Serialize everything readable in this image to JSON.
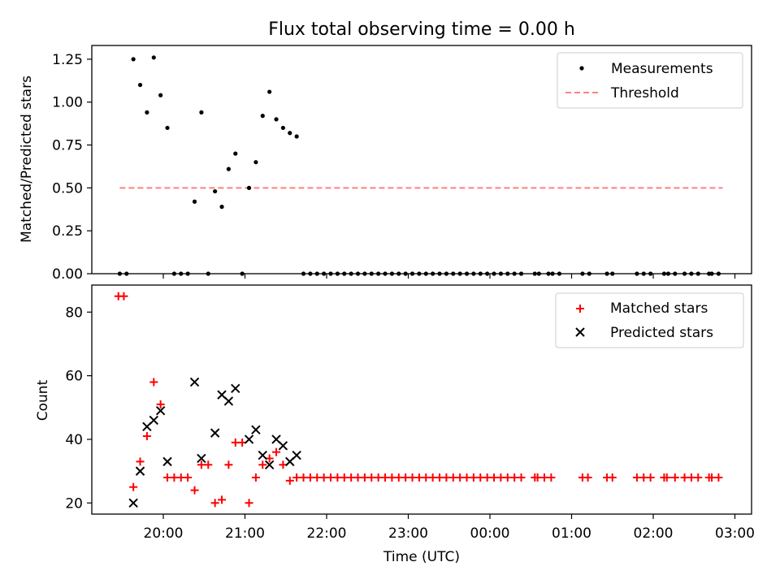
{
  "chart_data": [
    {
      "type": "scatter",
      "title": "Flux total observing time = 0.00 h",
      "ylabel": "Matched/Predicted stars",
      "xlabel": "",
      "ylim": [
        0,
        1.33
      ],
      "y_ticks": [
        0.0,
        0.25,
        0.5,
        0.75,
        1.0,
        1.25
      ],
      "y_tick_labels": [
        "0.00",
        "0.25",
        "0.50",
        "0.75",
        "1.00",
        "1.25"
      ],
      "legend_position": "top-right",
      "series": [
        {
          "name": "Measurements",
          "marker": "dot",
          "color": "#000000",
          "points": [
            [
              "19:28",
              0.0
            ],
            [
              "19:33",
              0.0
            ],
            [
              "19:38",
              1.25
            ],
            [
              "19:43",
              1.1
            ],
            [
              "19:48",
              0.94
            ],
            [
              "19:53",
              1.26
            ],
            [
              "19:58",
              1.04
            ],
            [
              "20:03",
              0.85
            ],
            [
              "20:08",
              0.0
            ],
            [
              "20:13",
              0.0
            ],
            [
              "20:18",
              0.0
            ],
            [
              "20:23",
              0.42
            ],
            [
              "20:28",
              0.94
            ],
            [
              "20:33",
              0.0
            ],
            [
              "20:38",
              0.48
            ],
            [
              "20:43",
              0.39
            ],
            [
              "20:48",
              0.61
            ],
            [
              "20:53",
              0.7
            ],
            [
              "20:58",
              0.0
            ],
            [
              "21:03",
              0.5
            ],
            [
              "21:08",
              0.65
            ],
            [
              "21:13",
              0.92
            ],
            [
              "21:18",
              1.06
            ],
            [
              "21:23",
              0.9
            ],
            [
              "21:28",
              0.85
            ],
            [
              "21:33",
              0.82
            ],
            [
              "21:38",
              0.8
            ],
            [
              "21:43",
              0.0
            ],
            [
              "21:48",
              0.0
            ],
            [
              "21:53",
              0.0
            ],
            [
              "21:58",
              0.0
            ],
            [
              "22:03",
              0.0
            ],
            [
              "22:08",
              0.0
            ],
            [
              "22:13",
              0.0
            ],
            [
              "22:18",
              0.0
            ],
            [
              "22:23",
              0.0
            ],
            [
              "22:28",
              0.0
            ],
            [
              "22:33",
              0.0
            ],
            [
              "22:38",
              0.0
            ],
            [
              "22:43",
              0.0
            ],
            [
              "22:48",
              0.0
            ],
            [
              "22:53",
              0.0
            ],
            [
              "22:58",
              0.0
            ],
            [
              "23:03",
              0.0
            ],
            [
              "23:08",
              0.0
            ],
            [
              "23:13",
              0.0
            ],
            [
              "23:18",
              0.0
            ],
            [
              "23:23",
              0.0
            ],
            [
              "23:28",
              0.0
            ],
            [
              "23:33",
              0.0
            ],
            [
              "23:38",
              0.0
            ],
            [
              "23:43",
              0.0
            ],
            [
              "23:48",
              0.0
            ],
            [
              "23:53",
              0.0
            ],
            [
              "23:58",
              0.0
            ],
            [
              "00:03",
              0.0
            ],
            [
              "00:08",
              0.0
            ],
            [
              "00:13",
              0.0
            ],
            [
              "00:18",
              0.0
            ],
            [
              "00:23",
              0.0
            ],
            [
              "00:33",
              0.0
            ],
            [
              "00:36",
              0.0
            ],
            [
              "00:43",
              0.0
            ],
            [
              "00:46",
              0.0
            ],
            [
              "00:51",
              0.0
            ],
            [
              "01:08",
              0.0
            ],
            [
              "01:13",
              0.0
            ],
            [
              "01:26",
              0.0
            ],
            [
              "01:30",
              0.0
            ],
            [
              "01:48",
              0.0
            ],
            [
              "01:53",
              0.0
            ],
            [
              "01:58",
              0.0
            ],
            [
              "02:08",
              0.0
            ],
            [
              "02:11",
              0.0
            ],
            [
              "02:16",
              0.0
            ],
            [
              "02:23",
              0.0
            ],
            [
              "02:28",
              0.0
            ],
            [
              "02:33",
              0.0
            ],
            [
              "02:41",
              0.0
            ],
            [
              "02:43",
              0.0
            ],
            [
              "02:48",
              0.0
            ]
          ]
        },
        {
          "name": "Threshold",
          "marker": "dashed-line",
          "color": "#ff7f7f",
          "points": [
            [
              "19:28",
              0.5
            ],
            [
              "02:51",
              0.5
            ]
          ]
        }
      ]
    },
    {
      "type": "scatter",
      "title": "",
      "ylabel": "Count",
      "xlabel": "Time (UTC)",
      "ylim": [
        16.5,
        88.5
      ],
      "y_ticks": [
        20,
        40,
        60,
        80
      ],
      "y_tick_labels": [
        "20",
        "40",
        "60",
        "80"
      ],
      "x_tick_labels": [
        "20:00",
        "21:00",
        "22:00",
        "23:00",
        "00:00",
        "01:00",
        "02:00",
        "03:00"
      ],
      "legend_position": "top-right",
      "series": [
        {
          "name": "Matched stars",
          "marker": "plus",
          "color": "#ff0000",
          "points": [
            [
              "19:27",
              85
            ],
            [
              "19:31",
              85
            ],
            [
              "19:38",
              25
            ],
            [
              "19:43",
              33
            ],
            [
              "19:48",
              41
            ],
            [
              "19:53",
              58
            ],
            [
              "19:58",
              51
            ],
            [
              "20:03",
              28
            ],
            [
              "20:08",
              28
            ],
            [
              "20:13",
              28
            ],
            [
              "20:18",
              28
            ],
            [
              "20:23",
              24
            ],
            [
              "20:28",
              32
            ],
            [
              "20:33",
              32
            ],
            [
              "20:38",
              20
            ],
            [
              "20:43",
              21
            ],
            [
              "20:48",
              32
            ],
            [
              "20:53",
              39
            ],
            [
              "20:58",
              39
            ],
            [
              "21:03",
              20
            ],
            [
              "21:08",
              28
            ],
            [
              "21:13",
              32
            ],
            [
              "21:18",
              34
            ],
            [
              "21:23",
              36
            ],
            [
              "21:28",
              32
            ],
            [
              "21:33",
              27
            ],
            [
              "21:38",
              28
            ],
            [
              "21:43",
              28
            ],
            [
              "21:48",
              28
            ],
            [
              "21:53",
              28
            ],
            [
              "21:58",
              28
            ],
            [
              "22:03",
              28
            ],
            [
              "22:08",
              28
            ],
            [
              "22:13",
              28
            ],
            [
              "22:18",
              28
            ],
            [
              "22:23",
              28
            ],
            [
              "22:28",
              28
            ],
            [
              "22:33",
              28
            ],
            [
              "22:38",
              28
            ],
            [
              "22:43",
              28
            ],
            [
              "22:48",
              28
            ],
            [
              "22:53",
              28
            ],
            [
              "22:58",
              28
            ],
            [
              "23:03",
              28
            ],
            [
              "23:08",
              28
            ],
            [
              "23:13",
              28
            ],
            [
              "23:18",
              28
            ],
            [
              "23:23",
              28
            ],
            [
              "23:28",
              28
            ],
            [
              "23:33",
              28
            ],
            [
              "23:38",
              28
            ],
            [
              "23:43",
              28
            ],
            [
              "23:48",
              28
            ],
            [
              "23:53",
              28
            ],
            [
              "23:58",
              28
            ],
            [
              "00:03",
              28
            ],
            [
              "00:08",
              28
            ],
            [
              "00:13",
              28
            ],
            [
              "00:18",
              28
            ],
            [
              "00:23",
              28
            ],
            [
              "00:33",
              28
            ],
            [
              "00:35",
              28
            ],
            [
              "00:40",
              28
            ],
            [
              "00:45",
              28
            ],
            [
              "01:08",
              28
            ],
            [
              "01:12",
              28
            ],
            [
              "01:26",
              28
            ],
            [
              "01:30",
              28
            ],
            [
              "01:48",
              28
            ],
            [
              "01:53",
              28
            ],
            [
              "01:58",
              28
            ],
            [
              "02:08",
              28
            ],
            [
              "02:10",
              28
            ],
            [
              "02:16",
              28
            ],
            [
              "02:23",
              28
            ],
            [
              "02:28",
              28
            ],
            [
              "02:33",
              28
            ],
            [
              "02:41",
              28
            ],
            [
              "02:43",
              28
            ],
            [
              "02:48",
              28
            ]
          ]
        },
        {
          "name": "Predicted stars",
          "marker": "x",
          "color": "#000000",
          "points": [
            [
              "19:38",
              20
            ],
            [
              "19:43",
              30
            ],
            [
              "19:48",
              44
            ],
            [
              "19:53",
              46
            ],
            [
              "19:58",
              49
            ],
            [
              "20:03",
              33
            ],
            [
              "20:23",
              58
            ],
            [
              "20:28",
              34
            ],
            [
              "20:38",
              42
            ],
            [
              "20:43",
              54
            ],
            [
              "20:48",
              52
            ],
            [
              "20:53",
              56
            ],
            [
              "21:03",
              40
            ],
            [
              "21:08",
              43
            ],
            [
              "21:13",
              35
            ],
            [
              "21:18",
              32
            ],
            [
              "21:23",
              40
            ],
            [
              "21:28",
              38
            ],
            [
              "21:33",
              33
            ],
            [
              "21:38",
              35
            ]
          ]
        }
      ]
    }
  ]
}
